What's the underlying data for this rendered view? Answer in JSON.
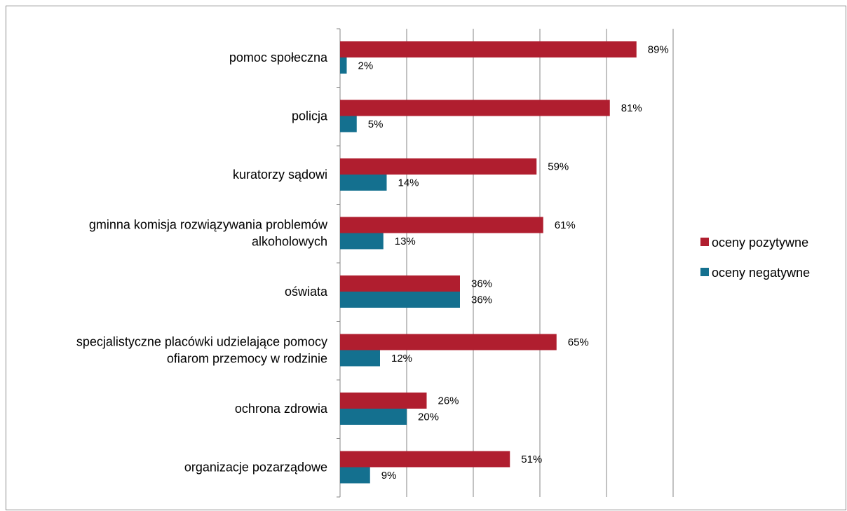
{
  "chart_data": {
    "type": "bar",
    "orientation": "horizontal",
    "categories": [
      [
        "pomoc społeczna"
      ],
      [
        "policja"
      ],
      [
        "kuratorzy sądowi"
      ],
      [
        "gminna komisja rozwiązywania problemów",
        "alkoholowych"
      ],
      [
        "oświata"
      ],
      [
        "specjalistyczne placówki udzielające pomocy",
        "ofiarom przemocy w rodzinie"
      ],
      [
        "ochrona zdrowia"
      ],
      [
        "organizacje pozarządowe"
      ]
    ],
    "series": [
      {
        "name": "oceny pozytywne",
        "color": "#b01e2f",
        "values": [
          89,
          81,
          59,
          61,
          36,
          65,
          26,
          51
        ],
        "labels": [
          "89%",
          "81%",
          "59%",
          "61%",
          "36%",
          "65%",
          "26%",
          "51%"
        ]
      },
      {
        "name": "oceny negatywne",
        "color": "#14708f",
        "values": [
          2,
          5,
          14,
          13,
          36,
          12,
          20,
          9
        ],
        "labels": [
          "2%",
          "5%",
          "14%",
          "13%",
          "36%",
          "12%",
          "20%",
          "9%"
        ]
      }
    ],
    "xlim": [
      0,
      100
    ],
    "grid": true,
    "legend_position": "right"
  }
}
